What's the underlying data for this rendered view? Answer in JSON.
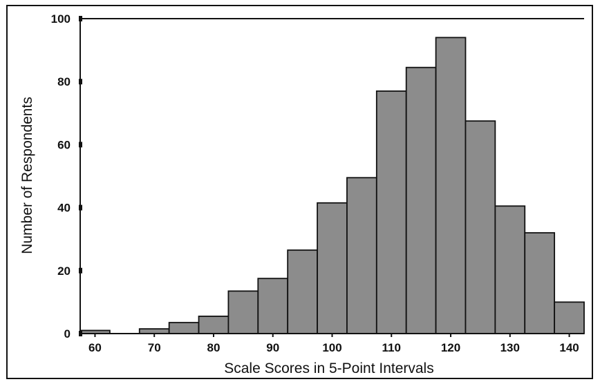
{
  "chart_data": {
    "type": "bar",
    "title": "",
    "xlabel": "Scale Scores in 5-Point Intervals",
    "ylabel": "Number of Respondents",
    "x_tick_labels": [
      "60",
      "70",
      "80",
      "90",
      "100",
      "110",
      "120",
      "130",
      "140"
    ],
    "y_tick_labels": [
      "0",
      "20",
      "40",
      "60",
      "80",
      "100"
    ],
    "xlim": [
      57.5,
      142.5
    ],
    "ylim": [
      0,
      100
    ],
    "bin_width": 5,
    "bins": [
      {
        "x": 60,
        "value": 1
      },
      {
        "x": 65,
        "value": 0
      },
      {
        "x": 70,
        "value": 1.5
      },
      {
        "x": 75,
        "value": 3.5
      },
      {
        "x": 80,
        "value": 5.5
      },
      {
        "x": 85,
        "value": 13.5
      },
      {
        "x": 90,
        "value": 17.5
      },
      {
        "x": 95,
        "value": 26.5
      },
      {
        "x": 100,
        "value": 41.5
      },
      {
        "x": 105,
        "value": 49.5
      },
      {
        "x": 110,
        "value": 77
      },
      {
        "x": 115,
        "value": 84.5
      },
      {
        "x": 120,
        "value": 94
      },
      {
        "x": 125,
        "value": 67.5
      },
      {
        "x": 130,
        "value": 40.5
      },
      {
        "x": 135,
        "value": 32
      },
      {
        "x": 140,
        "value": 10
      }
    ],
    "colors": {
      "bar_fill": "#8c8c8c",
      "bar_stroke": "#111111",
      "axis": "#111111"
    },
    "grid": false,
    "legend": "none"
  }
}
